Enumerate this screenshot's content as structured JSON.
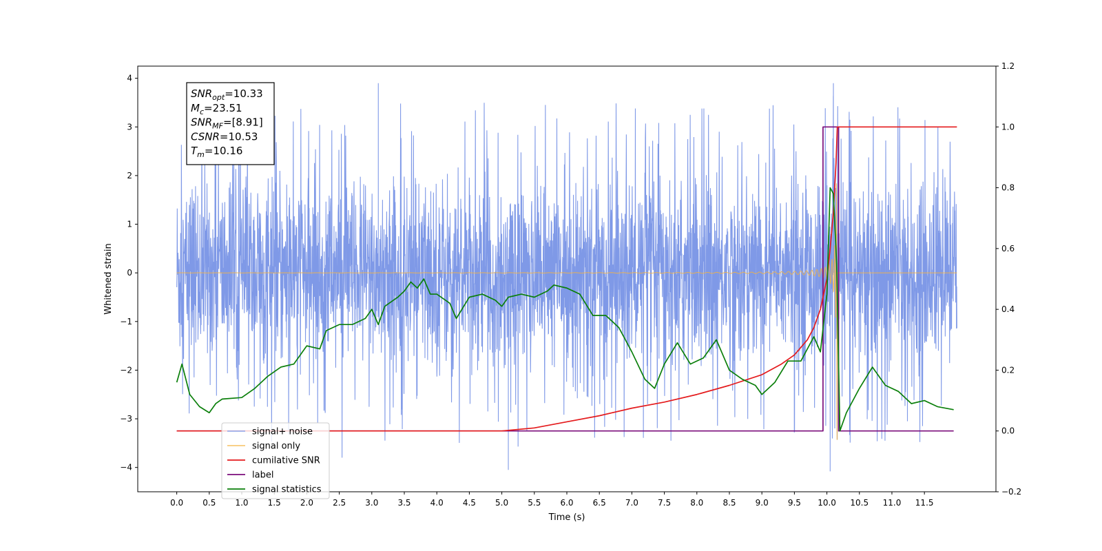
{
  "chart_data": {
    "type": "line",
    "xlabel": "Time (s)",
    "ylabel": "Whitened strain",
    "xlim": [
      -0.6,
      12.6
    ],
    "ylim": [
      -4.5,
      4.25
    ],
    "y2lim": [
      -0.2,
      1.2
    ],
    "xticks": [
      "0.0",
      "0.5",
      "1.0",
      "1.5",
      "2.0",
      "2.5",
      "3.0",
      "3.5",
      "4.0",
      "4.5",
      "5.0",
      "5.5",
      "6.0",
      "6.5",
      "7.0",
      "7.5",
      "8.0",
      "8.5",
      "9.0",
      "9.5",
      "10.0",
      "10.5",
      "11.0",
      "11.5"
    ],
    "yticks": [
      "−4",
      "−3",
      "−2",
      "−1",
      "0",
      "1",
      "2",
      "3",
      "4"
    ],
    "y2ticks": [
      "−0.2",
      "0.0",
      "0.2",
      "0.4",
      "0.6",
      "0.8",
      "1.0",
      "1.2"
    ],
    "grid": false,
    "legend_position": "lower-left",
    "annotation": [
      {
        "base": "SNR",
        "sub": "opt",
        "value": "=10.33"
      },
      {
        "base": "M",
        "sub": "c",
        "value": "=23.51"
      },
      {
        "base": "SNR",
        "sub": "MF",
        "value": "=[8.91]"
      },
      {
        "base": "CSNR",
        "sub": "",
        "value": "=10.53"
      },
      {
        "base": "T",
        "sub": "m",
        "value": "=10.16"
      }
    ],
    "series": [
      {
        "name": "signal+ noise",
        "color": "#7893e6",
        "axis": "left",
        "kind": "noise",
        "x_range": [
          0.0,
          12.0
        ],
        "typical_envelope": [
          -1.9,
          1.7
        ],
        "extremes": [
          -4.08,
          3.9
        ],
        "peaks_x": [
          3.1,
          10.1
        ],
        "peaks_y": [
          3.9,
          3.9
        ],
        "dips_x": [
          5.1,
          10.05
        ],
        "dips_y": [
          -4.05,
          -4.08
        ]
      },
      {
        "name": "signal only",
        "color": "#f5b342",
        "axis": "left",
        "kind": "chirp",
        "x_range": [
          0.0,
          12.0
        ],
        "merger_time": 10.16,
        "peak_amplitude": 3.5
      },
      {
        "name": "cumilative SNR",
        "color": "#e41a1c",
        "axis": "right",
        "x": [
          0,
          5.0,
          5.5,
          6.0,
          6.5,
          7.0,
          7.5,
          8.0,
          8.5,
          9.0,
          9.3,
          9.5,
          9.7,
          9.8,
          9.9,
          10.0,
          10.05,
          10.1,
          10.14,
          10.16,
          12.0
        ],
        "y": [
          0.0,
          0.0,
          0.01,
          0.03,
          0.05,
          0.075,
          0.095,
          0.12,
          0.15,
          0.185,
          0.22,
          0.25,
          0.3,
          0.34,
          0.4,
          0.5,
          0.6,
          0.72,
          0.88,
          1.0,
          1.0
        ]
      },
      {
        "name": "label",
        "color": "#7b0c7b",
        "axis": "right",
        "x": [
          0,
          9.94,
          9.94,
          10.0,
          10.0,
          10.18,
          10.18,
          11.95
        ],
        "y": [
          0,
          0,
          1,
          1,
          1,
          1,
          0,
          0
        ]
      },
      {
        "name": "signal statistics",
        "color": "#0a7f0a",
        "axis": "right",
        "x": [
          0.0,
          0.08,
          0.2,
          0.35,
          0.5,
          0.6,
          0.7,
          1.0,
          1.2,
          1.4,
          1.6,
          1.8,
          2.0,
          2.2,
          2.3,
          2.5,
          2.7,
          2.9,
          3.0,
          3.1,
          3.2,
          3.4,
          3.5,
          3.6,
          3.7,
          3.8,
          3.9,
          4.0,
          4.2,
          4.3,
          4.5,
          4.7,
          4.9,
          5.0,
          5.1,
          5.3,
          5.5,
          5.7,
          5.8,
          6.0,
          6.2,
          6.4,
          6.6,
          6.8,
          7.0,
          7.2,
          7.35,
          7.5,
          7.7,
          7.9,
          8.1,
          8.3,
          8.5,
          8.7,
          8.9,
          9.0,
          9.2,
          9.4,
          9.6,
          9.8,
          9.9,
          10.0,
          10.05,
          10.1,
          10.15,
          10.2,
          10.3,
          10.5,
          10.7,
          10.9,
          11.1,
          11.3,
          11.5,
          11.7,
          11.95
        ],
        "y": [
          0.16,
          0.22,
          0.12,
          0.08,
          0.06,
          0.09,
          0.105,
          0.11,
          0.14,
          0.18,
          0.21,
          0.22,
          0.28,
          0.27,
          0.33,
          0.35,
          0.35,
          0.37,
          0.4,
          0.35,
          0.41,
          0.44,
          0.46,
          0.49,
          0.47,
          0.5,
          0.45,
          0.45,
          0.42,
          0.37,
          0.44,
          0.45,
          0.43,
          0.41,
          0.44,
          0.45,
          0.44,
          0.46,
          0.48,
          0.47,
          0.45,
          0.38,
          0.38,
          0.34,
          0.26,
          0.17,
          0.14,
          0.22,
          0.29,
          0.22,
          0.24,
          0.3,
          0.2,
          0.17,
          0.15,
          0.12,
          0.16,
          0.23,
          0.23,
          0.31,
          0.26,
          0.45,
          0.8,
          0.78,
          0.55,
          0.0,
          0.06,
          0.14,
          0.21,
          0.15,
          0.13,
          0.09,
          0.1,
          0.08,
          0.07
        ]
      }
    ]
  }
}
